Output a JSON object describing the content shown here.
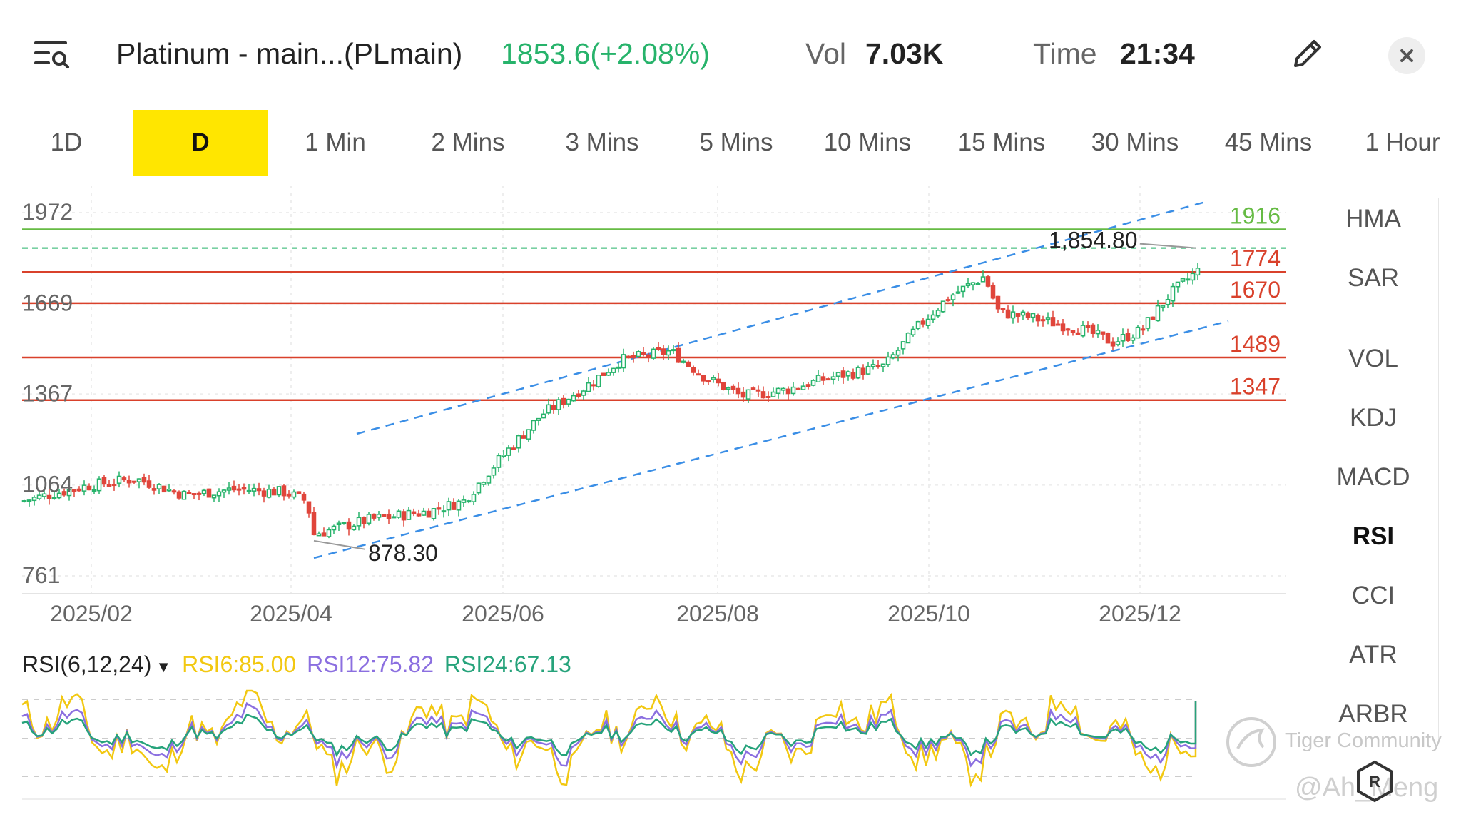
{
  "header": {
    "title": "Platinum - main...(PLmain)",
    "price_change": "1853.6(+2.08%)",
    "vol_label": "Vol",
    "vol_value": "7.03K",
    "time_label": "Time",
    "time_value": "21:34"
  },
  "tabs": [
    "1D",
    "D",
    "1 Min",
    "2 Mins",
    "3 Mins",
    "5 Mins",
    "10 Mins",
    "15 Mins",
    "30 Mins",
    "45 Mins",
    "1 Hour"
  ],
  "active_tab": "D",
  "side_panel": {
    "main_indicators": [
      "HMA",
      "SAR"
    ],
    "sub_indicators": [
      "VOL",
      "KDJ",
      "MACD",
      "RSI",
      "CCI",
      "ATR",
      "ARBR"
    ],
    "active": "RSI"
  },
  "chart_data": {
    "type": "candlestick",
    "y_axis_ticks": [
      "1972",
      "1669",
      "1367",
      "1064",
      "761"
    ],
    "x_axis_labels": [
      "2025/02",
      "2025/04",
      "2025/06",
      "2025/08",
      "2025/10",
      "2025/12"
    ],
    "ylim": [
      761,
      1972
    ],
    "horizontal_levels": [
      {
        "value": 1916,
        "label": "1916",
        "color": "#66bb44"
      },
      {
        "value": 1774,
        "label": "1774",
        "color": "#d9412b"
      },
      {
        "value": 1670,
        "label": "1670",
        "color": "#d9412b"
      },
      {
        "value": 1489,
        "label": "1489",
        "color": "#d9412b"
      },
      {
        "value": 1347,
        "label": "1347",
        "color": "#d9412b"
      }
    ],
    "last_price_line": 1854,
    "high_annotation": "1,854.80",
    "low_annotation": "878.30",
    "up_color": "#27b36b",
    "down_color": "#e0453b",
    "channel_color": "#3a8ee6"
  },
  "rsi": {
    "label": "RSI(6,12,24)",
    "rsi6": "RSI6:85.00",
    "rsi12": "RSI12:75.82",
    "rsi24": "RSI24:67.13",
    "colors": {
      "rsi6": "#f2c811",
      "rsi12": "#8b6fe0",
      "rsi24": "#26a37b"
    }
  },
  "watermark": {
    "community": "Tiger Community",
    "user": "@Ah_Meng"
  }
}
